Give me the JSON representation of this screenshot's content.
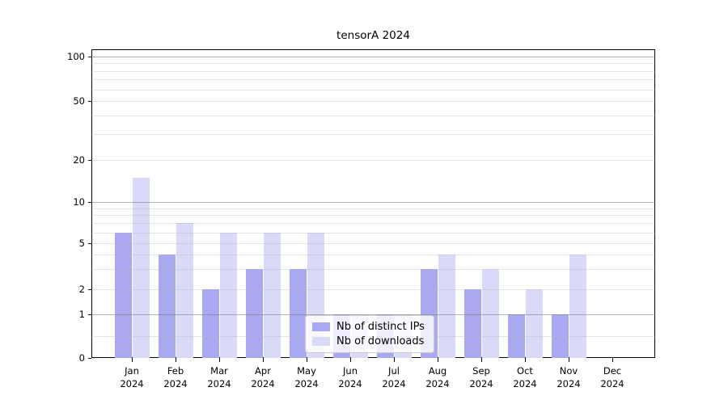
{
  "chart_data": {
    "type": "bar",
    "title": "tensorA 2024",
    "categories": [
      "Jan 2024",
      "Feb 2024",
      "Mar 2024",
      "Apr 2024",
      "May 2024",
      "Jun 2024",
      "Jul 2024",
      "Aug 2024",
      "Sep 2024",
      "Oct 2024",
      "Nov 2024",
      "Dec 2024"
    ],
    "series": [
      {
        "name": "Nb of distinct IPs",
        "color": "#a9a9f1",
        "values": [
          6,
          4,
          2,
          3,
          3,
          1,
          1,
          3,
          2,
          1,
          1,
          0
        ]
      },
      {
        "name": "Nb of downloads",
        "color": "#d9d9f8",
        "values": [
          15,
          7,
          6,
          6,
          6,
          1,
          1,
          4,
          3,
          2,
          4,
          0
        ]
      }
    ],
    "xlabel": "",
    "ylabel": "",
    "yscale": "log-like",
    "yticks": [
      100,
      50,
      20,
      10,
      5,
      2,
      1,
      0
    ],
    "ylim": [
      0,
      120
    ],
    "grid": true,
    "grid_minor_values": [
      0.5,
      2,
      3,
      4,
      5,
      6,
      7,
      8,
      9,
      20,
      30,
      40,
      50,
      60,
      70,
      80,
      90
    ],
    "grid_major_values": [
      1,
      10,
      100
    ],
    "legend_position": "lower center"
  }
}
